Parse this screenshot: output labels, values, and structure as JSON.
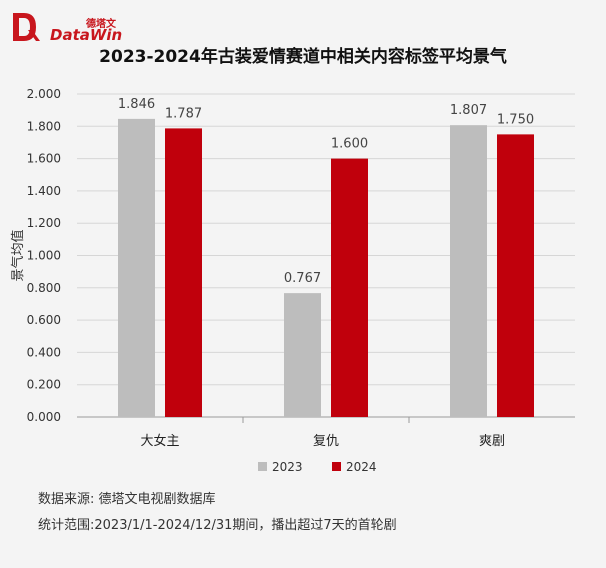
{
  "brand": {
    "name_en": "DataWin",
    "name_cn": "德塔文",
    "accent_color": "#c8161d"
  },
  "chart_data": {
    "type": "bar",
    "title": "2023-2024年古装爱情赛道中相关内容标签平均景气",
    "ylabel": "景气均值",
    "xlabel": "",
    "ylim": [
      0,
      2.0
    ],
    "yticks": [
      "0.000",
      "0.200",
      "0.400",
      "0.600",
      "0.800",
      "1.000",
      "1.200",
      "1.400",
      "1.600",
      "1.800",
      "2.000"
    ],
    "categories": [
      "大女主",
      "复仇",
      "爽剧"
    ],
    "series": [
      {
        "name": "2023",
        "color": "#bdbdbd",
        "values": [
          1.846,
          0.767,
          1.807
        ],
        "labels": [
          "1.846",
          "0.767",
          "1.807"
        ]
      },
      {
        "name": "2024",
        "color": "#c0000c",
        "values": [
          1.787,
          1.6,
          1.75
        ],
        "labels": [
          "1.787",
          "1.600",
          "1.750"
        ]
      }
    ],
    "legend_position": "bottom",
    "grid": true
  },
  "footer": {
    "source": "数据来源: 德塔文电视剧数据库",
    "scope": "统计范围:2023/1/1-2024/12/31期间，播出超过7天的首轮剧"
  }
}
